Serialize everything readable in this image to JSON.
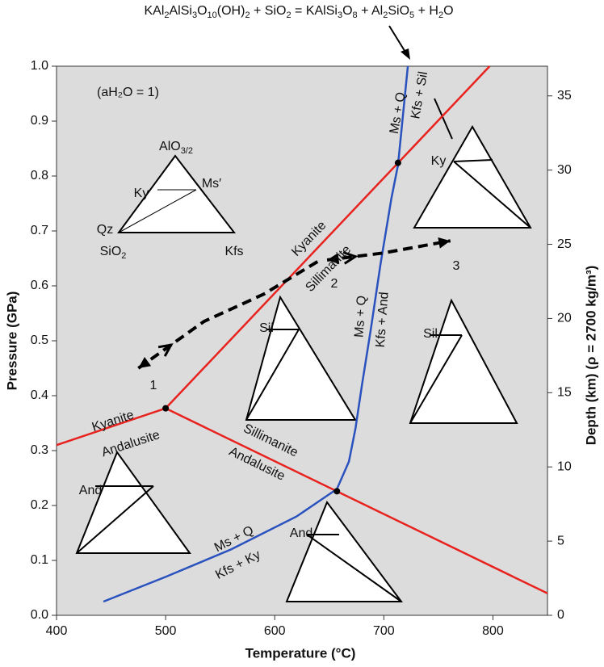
{
  "chart_data": {
    "type": "line",
    "title": "KAl2AlSi3O10(OH)2 + SiO2 = KAlSi3O8 + Al2SiO5 + H2O",
    "x_label": "Temperature (°C)",
    "y_label": "Pressure (GPa)",
    "y2_label": "Depth (km) (ρ = 2700 kg/m³)",
    "xlim": [
      400,
      850
    ],
    "ylim": [
      0,
      1
    ],
    "y2lim": [
      0,
      37
    ],
    "xticks": [
      400,
      500,
      600,
      700,
      800
    ],
    "yticks": [
      {
        "value": 0,
        "label": "0.0"
      },
      0.1,
      0.2,
      0.3,
      0.4,
      0.5,
      0.6,
      0.7,
      0.8,
      0.9,
      {
        "value": 1,
        "label": "1.0"
      }
    ],
    "y2ticks": [
      0,
      5,
      10,
      15,
      20,
      25,
      30,
      35
    ],
    "background": "#dcdcdc",
    "series": [
      {
        "color": "#e8231f",
        "x": [
          500,
          797
        ],
        "values": [
          0.377,
          1.0
        ]
      },
      {
        "color": "#e8231f",
        "x": [
          400,
          500
        ],
        "values": [
          0.31,
          0.377
        ]
      },
      {
        "color": "#e8231f",
        "x": [
          500,
          850
        ],
        "values": [
          0.377,
          0.04
        ]
      },
      {
        "color": "#2a52be",
        "x": [
          443,
          500,
          560,
          620,
          657,
          668,
          674,
          680,
          688,
          697,
          707,
          713,
          722
        ],
        "values": [
          0.025,
          0.07,
          0.12,
          0.18,
          0.23,
          0.28,
          0.34,
          0.42,
          0.52,
          0.64,
          0.76,
          0.82,
          1.0
        ]
      },
      {
        "color": "#000000",
        "dashed": true,
        "x": [
          475,
          535,
          590,
          640
        ],
        "values": [
          0.45,
          0.535,
          0.585,
          0.645
        ]
      },
      {
        "color": "#000000",
        "dashed": true,
        "x": [
          648,
          700,
          761
        ],
        "values": [
          0.647,
          0.66,
          0.682
        ]
      }
    ],
    "points": {
      "color": "#000000",
      "x": [
        500,
        657,
        713
      ],
      "values": [
        0.377,
        0.226,
        0.824
      ]
    },
    "annotations": [
      "(aH₂O = 1)",
      "AlO3/2",
      "Ky",
      "Ms′",
      "Qz",
      "SiO2",
      "Kfs",
      "Ky",
      "Sil",
      "Sil",
      "And",
      "And",
      "Kyanite",
      "Sillimanite",
      "Kyanite",
      "Andalusite",
      "Sillimanite",
      "Andalusite",
      "Ms + Q",
      "Kfs + Ky",
      "Ms + Q",
      "Kfs + Sil",
      "Ms + Q",
      "Kfs + And",
      "1",
      "2",
      "3"
    ]
  }
}
